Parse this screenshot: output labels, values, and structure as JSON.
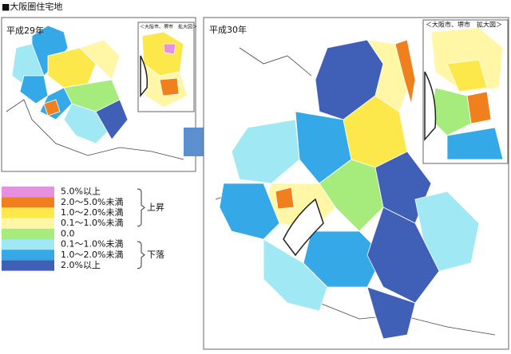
{
  "title": "■大阪圏住宅地",
  "maps": [
    {
      "label": "平成29年",
      "inset_label": "＜大阪市、堺市　拡大図＞"
    },
    {
      "label": "平成30年",
      "inset_label": "＜大阪市、堺市　拡大図＞"
    }
  ],
  "legend": {
    "items": [
      {
        "label": "5.0%以上",
        "color": "#e690e0"
      },
      {
        "label": "2.0～5.0%未満",
        "color": "#f0801e"
      },
      {
        "label": "1.0～2.0%未満",
        "color": "#fde84c"
      },
      {
        "label": "0.1～1.0%未満",
        "color": "#fff6a6"
      },
      {
        "label": "0.0",
        "color": "#a6ec7c"
      },
      {
        "label": "0.1～1.0%未満",
        "color": "#a0e8f4"
      },
      {
        "label": "1.0～2.0%未満",
        "color": "#35a8e8"
      },
      {
        "label": "2.0%以上",
        "color": "#3f60b6"
      }
    ],
    "groups": [
      {
        "label": "上昇"
      },
      {
        "label": "下落"
      }
    ]
  }
}
